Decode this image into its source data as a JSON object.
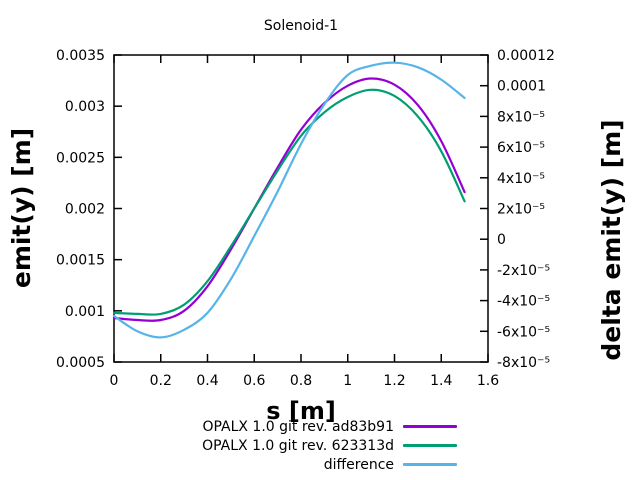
{
  "chart_data": {
    "type": "line",
    "title": "Solenoid-1",
    "xlabel": "s [m]",
    "ylabel": "emit(y) [m]",
    "y2label": "delta emit(y) [m]",
    "background_color": "#ffffff",
    "axis_color": "#000000",
    "grid": false,
    "legend_position": "below-right",
    "x_range": [
      0,
      1.6
    ],
    "y_range": [
      0.0005,
      0.0035
    ],
    "y2_range": [
      -8e-05,
      0.00012
    ],
    "x_ticks": {
      "values": [
        0,
        0.2,
        0.4,
        0.6,
        0.8,
        1,
        1.2,
        1.4,
        1.6
      ],
      "labels": [
        "0",
        "0.2",
        "0.4",
        "0.6",
        "0.8",
        "1",
        "1.2",
        "1.4",
        "1.6"
      ]
    },
    "y_ticks": {
      "values": [
        0.0005,
        0.001,
        0.0015,
        0.002,
        0.0025,
        0.003,
        0.0035
      ],
      "labels": [
        "0.0005",
        "0.001",
        "0.0015",
        "0.002",
        "0.0025",
        "0.003",
        "0.0035"
      ]
    },
    "y2_ticks": {
      "values": [
        -8e-05,
        -6e-05,
        -4e-05,
        -2e-05,
        0,
        2e-05,
        4e-05,
        6e-05,
        8e-05,
        0.0001,
        0.00012
      ],
      "labels": [
        "-8x10⁻⁵",
        "-6x10⁻⁵",
        "-4x10⁻⁵",
        "-2x10⁻⁵",
        "0",
        "2x10⁻⁵",
        "4x10⁻⁵",
        "6x10⁻⁵",
        "8x10⁻⁵",
        "0.0001",
        "0.00012"
      ]
    },
    "x": [
      0,
      0.1,
      0.2,
      0.3,
      0.4,
      0.5,
      0.6,
      0.7,
      0.8,
      0.9,
      1.0,
      1.1,
      1.2,
      1.3,
      1.4,
      1.5
    ],
    "series": [
      {
        "name": "OPALX 1.0 git rev. ad83b91",
        "color": "#9400d3",
        "axis": "y1",
        "values": [
          0.00093,
          0.00091,
          0.00091,
          0.001,
          0.00124,
          0.0016,
          0.002,
          0.0024,
          0.00277,
          0.00303,
          0.0032,
          0.00327,
          0.00321,
          0.00301,
          0.00266,
          0.00216
        ]
      },
      {
        "name": "OPALX 1.0 git rev. 623313d",
        "color": "#009e73",
        "axis": "y1",
        "values": [
          0.00098,
          0.00097,
          0.00097,
          0.00106,
          0.00129,
          0.00163,
          0.002,
          0.00237,
          0.00271,
          0.00294,
          0.00309,
          0.00316,
          0.0031,
          0.0029,
          0.00256,
          0.00207
        ]
      },
      {
        "name": "difference",
        "color": "#56b4e9",
        "axis": "y2",
        "values": [
          -5e-05,
          -6e-05,
          -6.4e-05,
          -5.9e-05,
          -4.8e-05,
          -2.6e-05,
          2e-06,
          3.1e-05,
          6.2e-05,
          8.8e-05,
          0.000107,
          0.000113,
          0.000115,
          0.000112,
          0.000104,
          9.2e-05
        ]
      }
    ]
  }
}
